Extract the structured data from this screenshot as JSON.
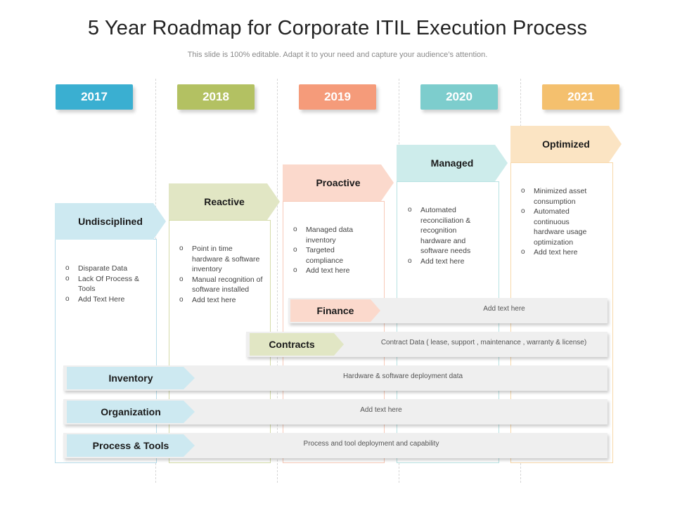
{
  "title": "5 Year Roadmap for Corporate ITIL Execution Process",
  "subtitle": "This slide is 100% editable. Adapt it to your need and capture your audience’s attention.",
  "years": [
    {
      "label": "2017",
      "color": "#3aafd1"
    },
    {
      "label": "2018",
      "color": "#b3c162"
    },
    {
      "label": "2019",
      "color": "#f59b7a"
    },
    {
      "label": "2020",
      "color": "#7dcdcd"
    },
    {
      "label": "2021",
      "color": "#f4c06e"
    }
  ],
  "stages": [
    {
      "label": "Undisciplined",
      "arrow_color": "#cde9f1",
      "border_color": "#b7dcea",
      "items": [
        "Disparate Data",
        "Lack Of Process & Tools",
        "Add Text Here"
      ]
    },
    {
      "label": "Reactive",
      "arrow_color": "#e1e6c4",
      "border_color": "#d4dba8",
      "items": [
        "Point in time hardware & software inventory",
        "Manual recognition of software installed",
        "Add text here"
      ]
    },
    {
      "label": "Proactive",
      "arrow_color": "#fbd9cc",
      "border_color": "#f8c9b7",
      "items": [
        "Managed data inventory",
        "Targeted compliance",
        "Add text here"
      ]
    },
    {
      "label": "Managed",
      "arrow_color": "#cdeceb",
      "border_color": "#b8e2e2",
      "items": [
        "Automated reconciliation & recognition hardware and software needs",
        "Add text here"
      ]
    },
    {
      "label": "Optimized",
      "arrow_color": "#fbe4c3",
      "border_color": "#f8d8aa",
      "items": [
        "Minimized asset consumption",
        "Automated continuous hardware usage optimization",
        "Add text here"
      ]
    }
  ],
  "bands": [
    {
      "label": "Finance",
      "text": "Add text here",
      "tag_color": "#fbd9cc"
    },
    {
      "label": "Contracts",
      "text": "Contract Data ( lease, support , maintenance , warranty & license)",
      "tag_color": "#e1e6c4"
    },
    {
      "label": "Inventory",
      "text": "Hardware & software deployment data",
      "tag_color": "#cde9f1"
    },
    {
      "label": "Organization",
      "text": "Add text here",
      "tag_color": "#cde9f1"
    },
    {
      "label": "Process & Tools",
      "text": "Process and tool deployment and capability",
      "tag_color": "#cde9f1"
    }
  ]
}
